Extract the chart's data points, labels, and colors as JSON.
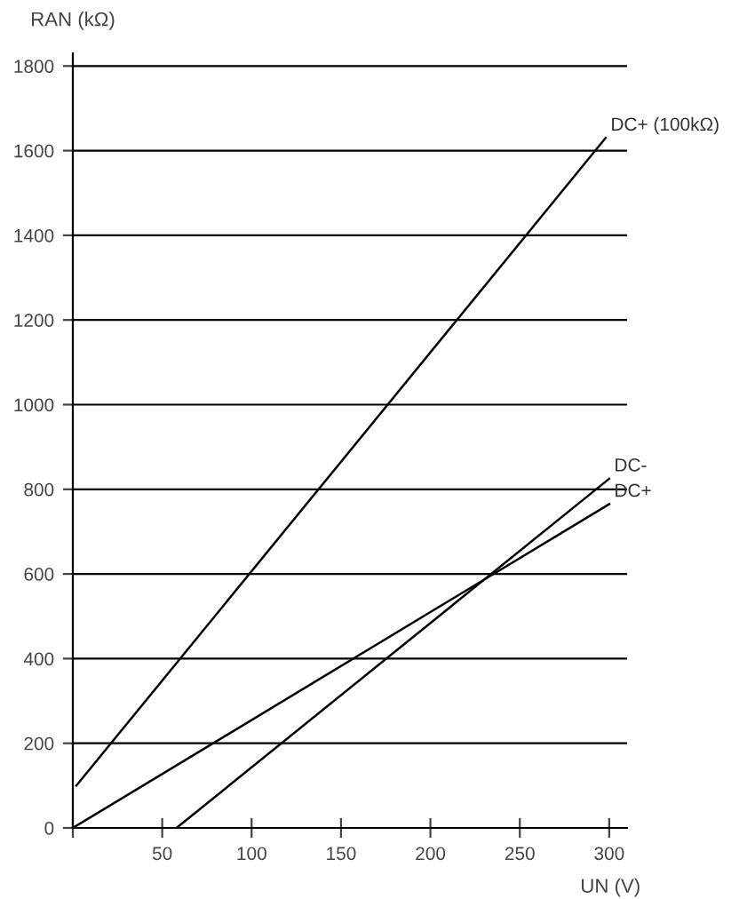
{
  "chart_data": {
    "type": "line",
    "xlabel": "UN (V)",
    "ylabel": "RAN (kΩ)",
    "series": [
      {
        "name": "DC+ (100kΩ)",
        "color": "#000000",
        "x": [
          2,
          298
        ],
        "values": [
          100,
          1630
        ]
      },
      {
        "name": "DC-",
        "color": "#000000",
        "x": [
          58,
          300
        ],
        "values": [
          0,
          825
        ]
      },
      {
        "name": "DC+",
        "color": "#000000",
        "x": [
          0,
          300
        ],
        "values": [
          0,
          765
        ]
      }
    ],
    "xlim": [
      0,
      310
    ],
    "ylim": [
      0,
      1830
    ],
    "xticks": [
      {
        "value": 0,
        "label": null
      },
      50,
      100,
      150,
      200,
      250,
      300
    ],
    "yticks": [
      0,
      200,
      400,
      600,
      800,
      1000,
      1200,
      1400,
      1600,
      1800
    ],
    "grid": "y",
    "marker": "none",
    "line_style": "solid",
    "legend": false
  }
}
